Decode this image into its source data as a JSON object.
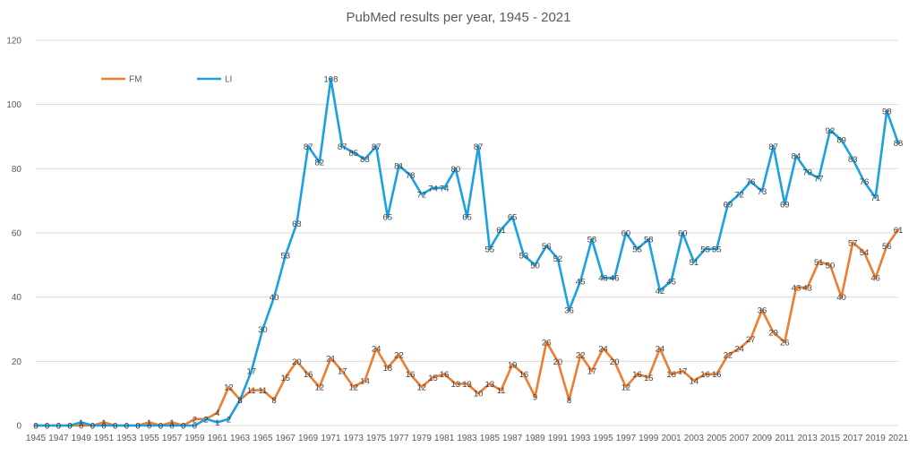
{
  "chart_data": {
    "type": "line",
    "title": "PubMed results per year, 1945 - 2021",
    "xlabel": "",
    "ylabel": "",
    "ylim": [
      0,
      120
    ],
    "yticks": [
      0,
      20,
      40,
      60,
      80,
      100,
      120
    ],
    "grid": true,
    "legend_position": "top-left",
    "x": [
      1945,
      1946,
      1947,
      1948,
      1949,
      1950,
      1951,
      1952,
      1953,
      1954,
      1955,
      1956,
      1957,
      1958,
      1959,
      1960,
      1961,
      1962,
      1963,
      1964,
      1965,
      1966,
      1967,
      1968,
      1969,
      1970,
      1971,
      1972,
      1973,
      1974,
      1975,
      1976,
      1977,
      1978,
      1979,
      1980,
      1981,
      1982,
      1983,
      1984,
      1985,
      1986,
      1987,
      1988,
      1989,
      1990,
      1991,
      1992,
      1993,
      1994,
      1995,
      1996,
      1997,
      1998,
      1999,
      2000,
      2001,
      2002,
      2003,
      2004,
      2005,
      2006,
      2007,
      2008,
      2009,
      2010,
      2011,
      2012,
      2013,
      2014,
      2015,
      2016,
      2017,
      2018,
      2019,
      2020,
      2021
    ],
    "xtick_labels": [
      "1945",
      "1947",
      "1949",
      "1951",
      "1953",
      "1955",
      "1957",
      "1959",
      "1961",
      "1963",
      "1965",
      "1967",
      "1969",
      "1971",
      "1973",
      "1975",
      "1977",
      "1979",
      "1981",
      "1983",
      "1985",
      "1987",
      "1989",
      "1991",
      "1993",
      "1995",
      "1997",
      "1999",
      "2001",
      "2003",
      "2005",
      "2007",
      "2009",
      "2011",
      "2013",
      "2015",
      "2017",
      "2019",
      "2021"
    ],
    "series": [
      {
        "name": "FM",
        "color": "#ED7D31",
        "values": [
          0,
          0,
          0,
          0,
          0,
          0,
          1,
          0,
          0,
          0,
          1,
          0,
          1,
          0,
          2,
          2,
          4,
          12,
          8,
          11,
          11,
          8,
          15,
          20,
          16,
          12,
          21,
          17,
          12,
          14,
          24,
          18,
          22,
          16,
          12,
          15,
          16,
          13,
          13,
          10,
          13,
          11,
          19,
          16,
          9,
          26,
          20,
          8,
          22,
          17,
          24,
          20,
          12,
          16,
          15,
          24,
          16,
          17,
          14,
          16,
          16,
          22,
          24,
          27,
          36,
          29,
          26,
          43,
          43,
          51,
          50,
          40,
          57,
          54,
          46,
          56,
          61
        ]
      },
      {
        "name": "LI",
        "color": "#1BA1E2",
        "values": [
          0,
          0,
          0,
          0,
          1,
          0,
          0,
          0,
          0,
          0,
          0,
          0,
          0,
          0,
          0,
          2,
          1,
          2,
          8,
          17,
          30,
          40,
          53,
          63,
          87,
          82,
          108,
          87,
          85,
          83,
          87,
          65,
          81,
          78,
          72,
          74,
          74,
          80,
          65,
          87,
          55,
          61,
          65,
          53,
          50,
          56,
          52,
          36,
          45,
          58,
          46,
          46,
          60,
          55,
          58,
          42,
          45,
          60,
          51,
          55,
          55,
          69,
          72,
          76,
          73,
          87,
          69,
          84,
          79,
          77,
          92,
          89,
          83,
          76,
          71,
          98,
          88
        ]
      }
    ]
  }
}
